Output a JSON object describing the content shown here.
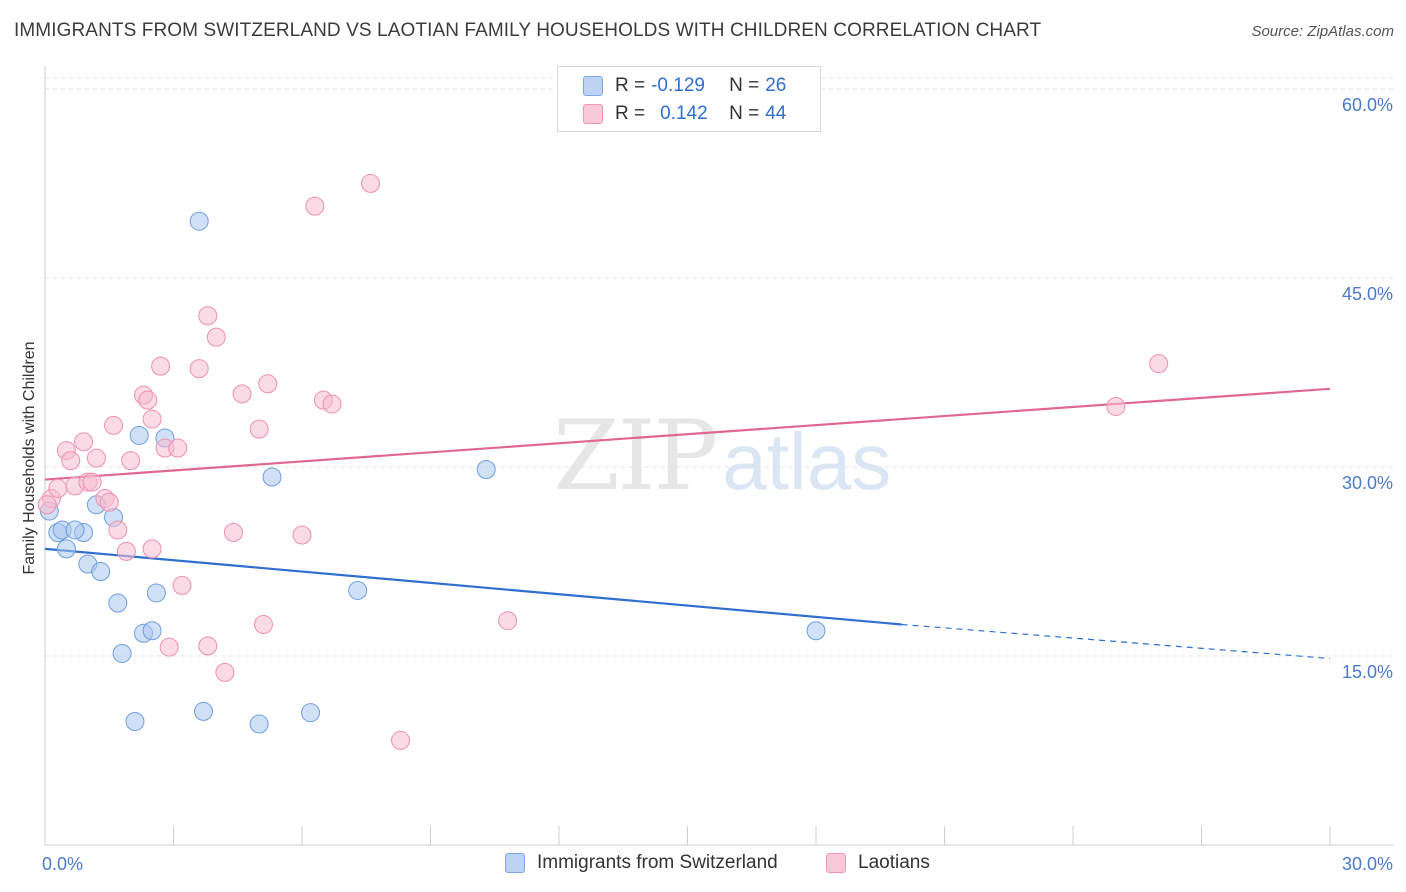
{
  "header": {
    "title": "IMMIGRANTS FROM SWITZERLAND VS LAOTIAN FAMILY HOUSEHOLDS WITH CHILDREN CORRELATION CHART",
    "source": "Source: ZipAtlas.com"
  },
  "watermark": {
    "zip": "ZIP",
    "atlas": "atlas"
  },
  "legend": {
    "rows": [
      {
        "r_label": "R =",
        "r_value": "-0.129",
        "n_label": "N =",
        "n_value": "26"
      },
      {
        "r_label": "R =",
        "r_value": "0.142",
        "n_label": "N =",
        "n_value": "44"
      }
    ]
  },
  "chart_data": {
    "type": "scatter",
    "title": "IMMIGRANTS FROM SWITZERLAND VS LAOTIAN FAMILY HOUSEHOLDS WITH CHILDREN CORRELATION CHART",
    "ylabel": "Family Households with Children",
    "xlabel": "",
    "xlim": [
      0,
      30
    ],
    "ylim": [
      0,
      61.5
    ],
    "x_tick_labels": [
      {
        "value": 0,
        "label": "0.0%"
      },
      {
        "value": 30,
        "label": "30.0%"
      }
    ],
    "y_tick_labels": [
      {
        "value": 15,
        "label": "15.0%"
      },
      {
        "value": 30,
        "label": "30.0%"
      },
      {
        "value": 45,
        "label": "45.0%"
      },
      {
        "value": 60,
        "label": "60.0%"
      }
    ],
    "grid": true,
    "legend_position": "top-center",
    "series": [
      {
        "name": "Immigrants from Switzerland",
        "color": "#a9c6ef",
        "stroke": "#6f9ee0",
        "trend_color": "#2f6fd0",
        "trend": {
          "x0": 0,
          "y0": 23.5,
          "x1": 20,
          "y1": 17.5,
          "dash_to_x": 30,
          "dash_to_y": 14.8
        },
        "points": [
          [
            0.1,
            26.5
          ],
          [
            0.3,
            24.8
          ],
          [
            0.5,
            23.5
          ],
          [
            0.4,
            25
          ],
          [
            0.9,
            24.8
          ],
          [
            0.7,
            25
          ],
          [
            1.2,
            27
          ],
          [
            1.6,
            26
          ],
          [
            1.0,
            22.3
          ],
          [
            1.3,
            21.7
          ],
          [
            1.7,
            19.2
          ],
          [
            1.8,
            15.2
          ],
          [
            2.1,
            9.8
          ],
          [
            2.2,
            32.5
          ],
          [
            2.6,
            20
          ],
          [
            2.3,
            16.8
          ],
          [
            2.5,
            17
          ],
          [
            2.8,
            32.3
          ],
          [
            3.6,
            49.5
          ],
          [
            3.7,
            10.6
          ],
          [
            5.0,
            9.6
          ],
          [
            5.3,
            29.2
          ],
          [
            6.2,
            10.5
          ],
          [
            7.3,
            20.2
          ],
          [
            10.3,
            29.8
          ],
          [
            18.0,
            17
          ]
        ]
      },
      {
        "name": "Laotians",
        "color": "#f6bccf",
        "stroke": "#ee90b0",
        "trend_color": "#e06890",
        "trend": {
          "x0": 0,
          "y0": 29,
          "x1": 30,
          "y1": 36.2
        },
        "points": [
          [
            0.15,
            27.5
          ],
          [
            0.3,
            28.3
          ],
          [
            0.5,
            31.3
          ],
          [
            0.6,
            30.5
          ],
          [
            0.7,
            28.5
          ],
          [
            0.9,
            32
          ],
          [
            1.0,
            28.8
          ],
          [
            1.1,
            28.8
          ],
          [
            1.2,
            30.7
          ],
          [
            1.4,
            27.5
          ],
          [
            1.5,
            27.2
          ],
          [
            1.6,
            33.3
          ],
          [
            1.7,
            25
          ],
          [
            1.9,
            23.3
          ],
          [
            2.0,
            30.5
          ],
          [
            2.3,
            35.7
          ],
          [
            2.4,
            35.3
          ],
          [
            2.5,
            33.8
          ],
          [
            2.5,
            23.5
          ],
          [
            2.7,
            38
          ],
          [
            2.8,
            31.5
          ],
          [
            2.9,
            15.7
          ],
          [
            3.1,
            31.5
          ],
          [
            3.2,
            20.6
          ],
          [
            3.6,
            37.8
          ],
          [
            3.8,
            42
          ],
          [
            3.8,
            15.8
          ],
          [
            4.0,
            40.3
          ],
          [
            4.2,
            13.7
          ],
          [
            4.4,
            24.8
          ],
          [
            4.6,
            35.8
          ],
          [
            5.0,
            33
          ],
          [
            5.1,
            17.5
          ],
          [
            5.2,
            36.6
          ],
          [
            6.0,
            24.6
          ],
          [
            6.3,
            50.7
          ],
          [
            6.5,
            35.3
          ],
          [
            6.7,
            35
          ],
          [
            7.6,
            52.5
          ],
          [
            8.3,
            8.3
          ],
          [
            10.8,
            17.8
          ],
          [
            25.0,
            34.8
          ],
          [
            26.0,
            38.2
          ],
          [
            0.05,
            27
          ]
        ]
      }
    ]
  }
}
